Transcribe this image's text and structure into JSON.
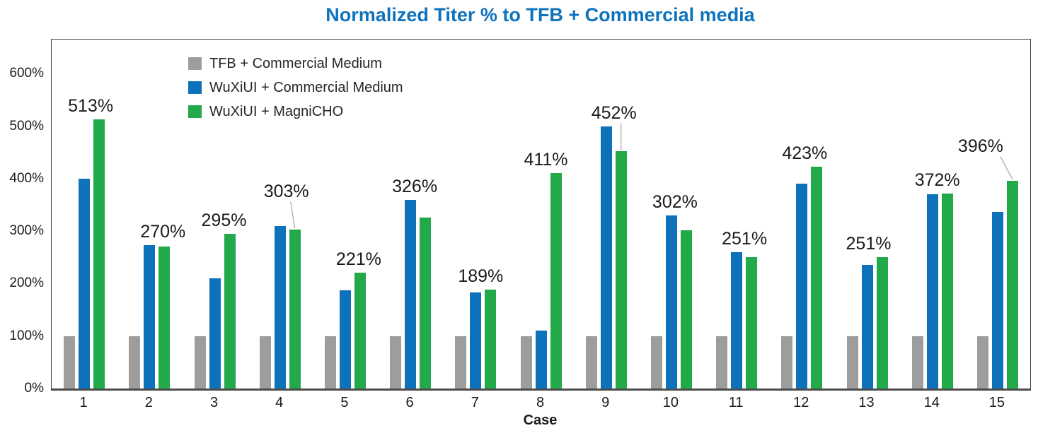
{
  "chart_data": {
    "type": "bar",
    "title": "Normalized Titer % to TFB + Commercial media",
    "title_color": "#0f72bc",
    "xlabel": "Case",
    "ylabel": "",
    "categories": [
      "1",
      "2",
      "3",
      "4",
      "5",
      "6",
      "7",
      "8",
      "9",
      "10",
      "11",
      "12",
      "13",
      "14",
      "15"
    ],
    "y_tick_labels": [
      "0%",
      "100%",
      "200%",
      "300%",
      "400%",
      "500%",
      "600%"
    ],
    "y_tick_values": [
      0,
      100,
      200,
      300,
      400,
      500,
      600
    ],
    "ylim": [
      0,
      665
    ],
    "grid": false,
    "legend_position": "top-left-inside",
    "series": [
      {
        "name": "TFB + Commercial Medium",
        "color": "#9d9d9d",
        "values": [
          100,
          100,
          100,
          100,
          100,
          100,
          100,
          100,
          100,
          100,
          100,
          100,
          100,
          100,
          100
        ]
      },
      {
        "name": "WuXiUI + Commercial Medium",
        "color": "#0d72ba",
        "values": [
          400,
          273,
          210,
          310,
          187,
          360,
          183,
          111,
          500,
          330,
          260,
          390,
          236,
          370,
          337
        ]
      },
      {
        "name": "WuXiUI + MagniCHO",
        "color": "#22a94a",
        "values": [
          513,
          270,
          295,
          303,
          221,
          326,
          189,
          411,
          452,
          302,
          251,
          423,
          251,
          372,
          396
        ]
      }
    ],
    "bar_labels": {
      "labeled_series": "WuXiUI + MagniCHO",
      "leader_color": "#a6a6a6",
      "items": [
        {
          "text": "513%",
          "dx": -12,
          "raise": 0,
          "leader": false,
          "leader_dx": 0
        },
        {
          "text": "270%",
          "dx": -2,
          "raise": 0,
          "leader": false,
          "leader_dx": 0
        },
        {
          "text": "295%",
          "dx": -8,
          "raise": 0,
          "leader": false,
          "leader_dx": 0
        },
        {
          "text": "303%",
          "dx": -12,
          "raise": 30,
          "leader": true,
          "leader_dx": 6
        },
        {
          "text": "221%",
          "dx": -2,
          "raise": 0,
          "leader": false,
          "leader_dx": 0
        },
        {
          "text": "326%",
          "dx": -15,
          "raise": 0,
          "leader": false,
          "leader_dx": 0
        },
        {
          "text": "189%",
          "dx": -14,
          "raise": 0,
          "leader": false,
          "leader_dx": 0
        },
        {
          "text": "411%",
          "dx": -14,
          "raise": 0,
          "leader": false,
          "leader_dx": 0
        },
        {
          "text": "452%",
          "dx": -10,
          "raise": 0,
          "leader": true,
          "leader_dx": 10
        },
        {
          "text": "302%",
          "dx": -16,
          "raise": 0,
          "leader": false,
          "leader_dx": 0
        },
        {
          "text": "251%",
          "dx": -10,
          "raise": 0,
          "leader": false,
          "leader_dx": 0
        },
        {
          "text": "423%",
          "dx": -17,
          "raise": 0,
          "leader": false,
          "leader_dx": 0
        },
        {
          "text": "251%",
          "dx": -19,
          "raise": 0,
          "leader": false,
          "leader_dx": 0
        },
        {
          "text": "372%",
          "dx": -14,
          "raise": 0,
          "leader": false,
          "leader_dx": 0
        },
        {
          "text": "396%",
          "dx": -45,
          "raise": 30,
          "leader": true,
          "leader_dx": 28
        }
      ]
    }
  }
}
